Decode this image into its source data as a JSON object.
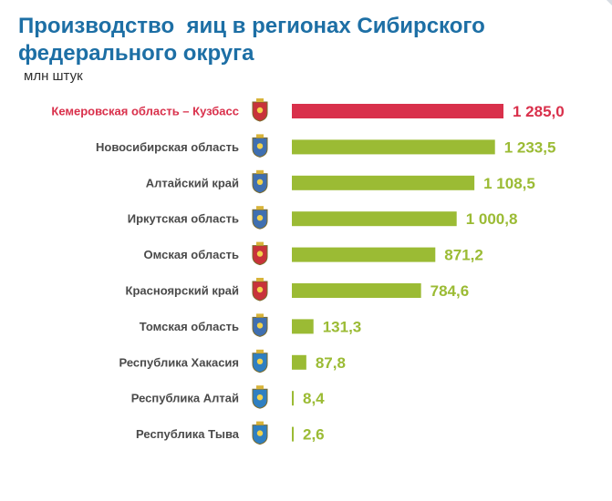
{
  "header": {
    "title": "Производство  яиц в регионах Сибирского\nфедерального округа",
    "unit": "млн штук"
  },
  "colors": {
    "title": "#1d6fa5",
    "highlight": "#d9304b",
    "bar": "#9bbb34",
    "label": "#4a4a4a"
  },
  "chart_data": {
    "type": "bar",
    "orientation": "horizontal",
    "title": "Производство  яиц в регионах Сибирского федерального округа",
    "unit": "млн штук",
    "categories": [
      "Кемеровская область – Кузбасс",
      "Новосибирская область",
      "Алтайский край",
      "Иркутская область",
      "Омская область",
      "Красноярский край",
      "Томская область",
      "Республика Хакасия",
      "Республика Алтай",
      "Республика Тыва"
    ],
    "values": [
      1285.0,
      1233.5,
      1108.5,
      1000.8,
      871.2,
      784.6,
      131.3,
      87.8,
      8.4,
      2.6
    ],
    "value_labels": [
      "1 285,0",
      "1 233,5",
      "1 108,5",
      "1 000,8",
      "871,2",
      "784,6",
      "131,3",
      "87,8",
      "8,4",
      "2,6"
    ],
    "highlighted_index": 0,
    "xlim": [
      0,
      1285
    ],
    "grid": false,
    "legend": "none",
    "icons": [
      "kemerovo-coat-of-arms-icon",
      "novosibirsk-coat-of-arms-icon",
      "altai-krai-coat-of-arms-icon",
      "irkutsk-coat-of-arms-icon",
      "omsk-coat-of-arms-icon",
      "krasnoyarsk-coat-of-arms-icon",
      "tomsk-coat-of-arms-icon",
      "khakassia-coat-of-arms-icon",
      "altai-republic-coat-of-arms-icon",
      "tuva-coat-of-arms-icon"
    ]
  }
}
